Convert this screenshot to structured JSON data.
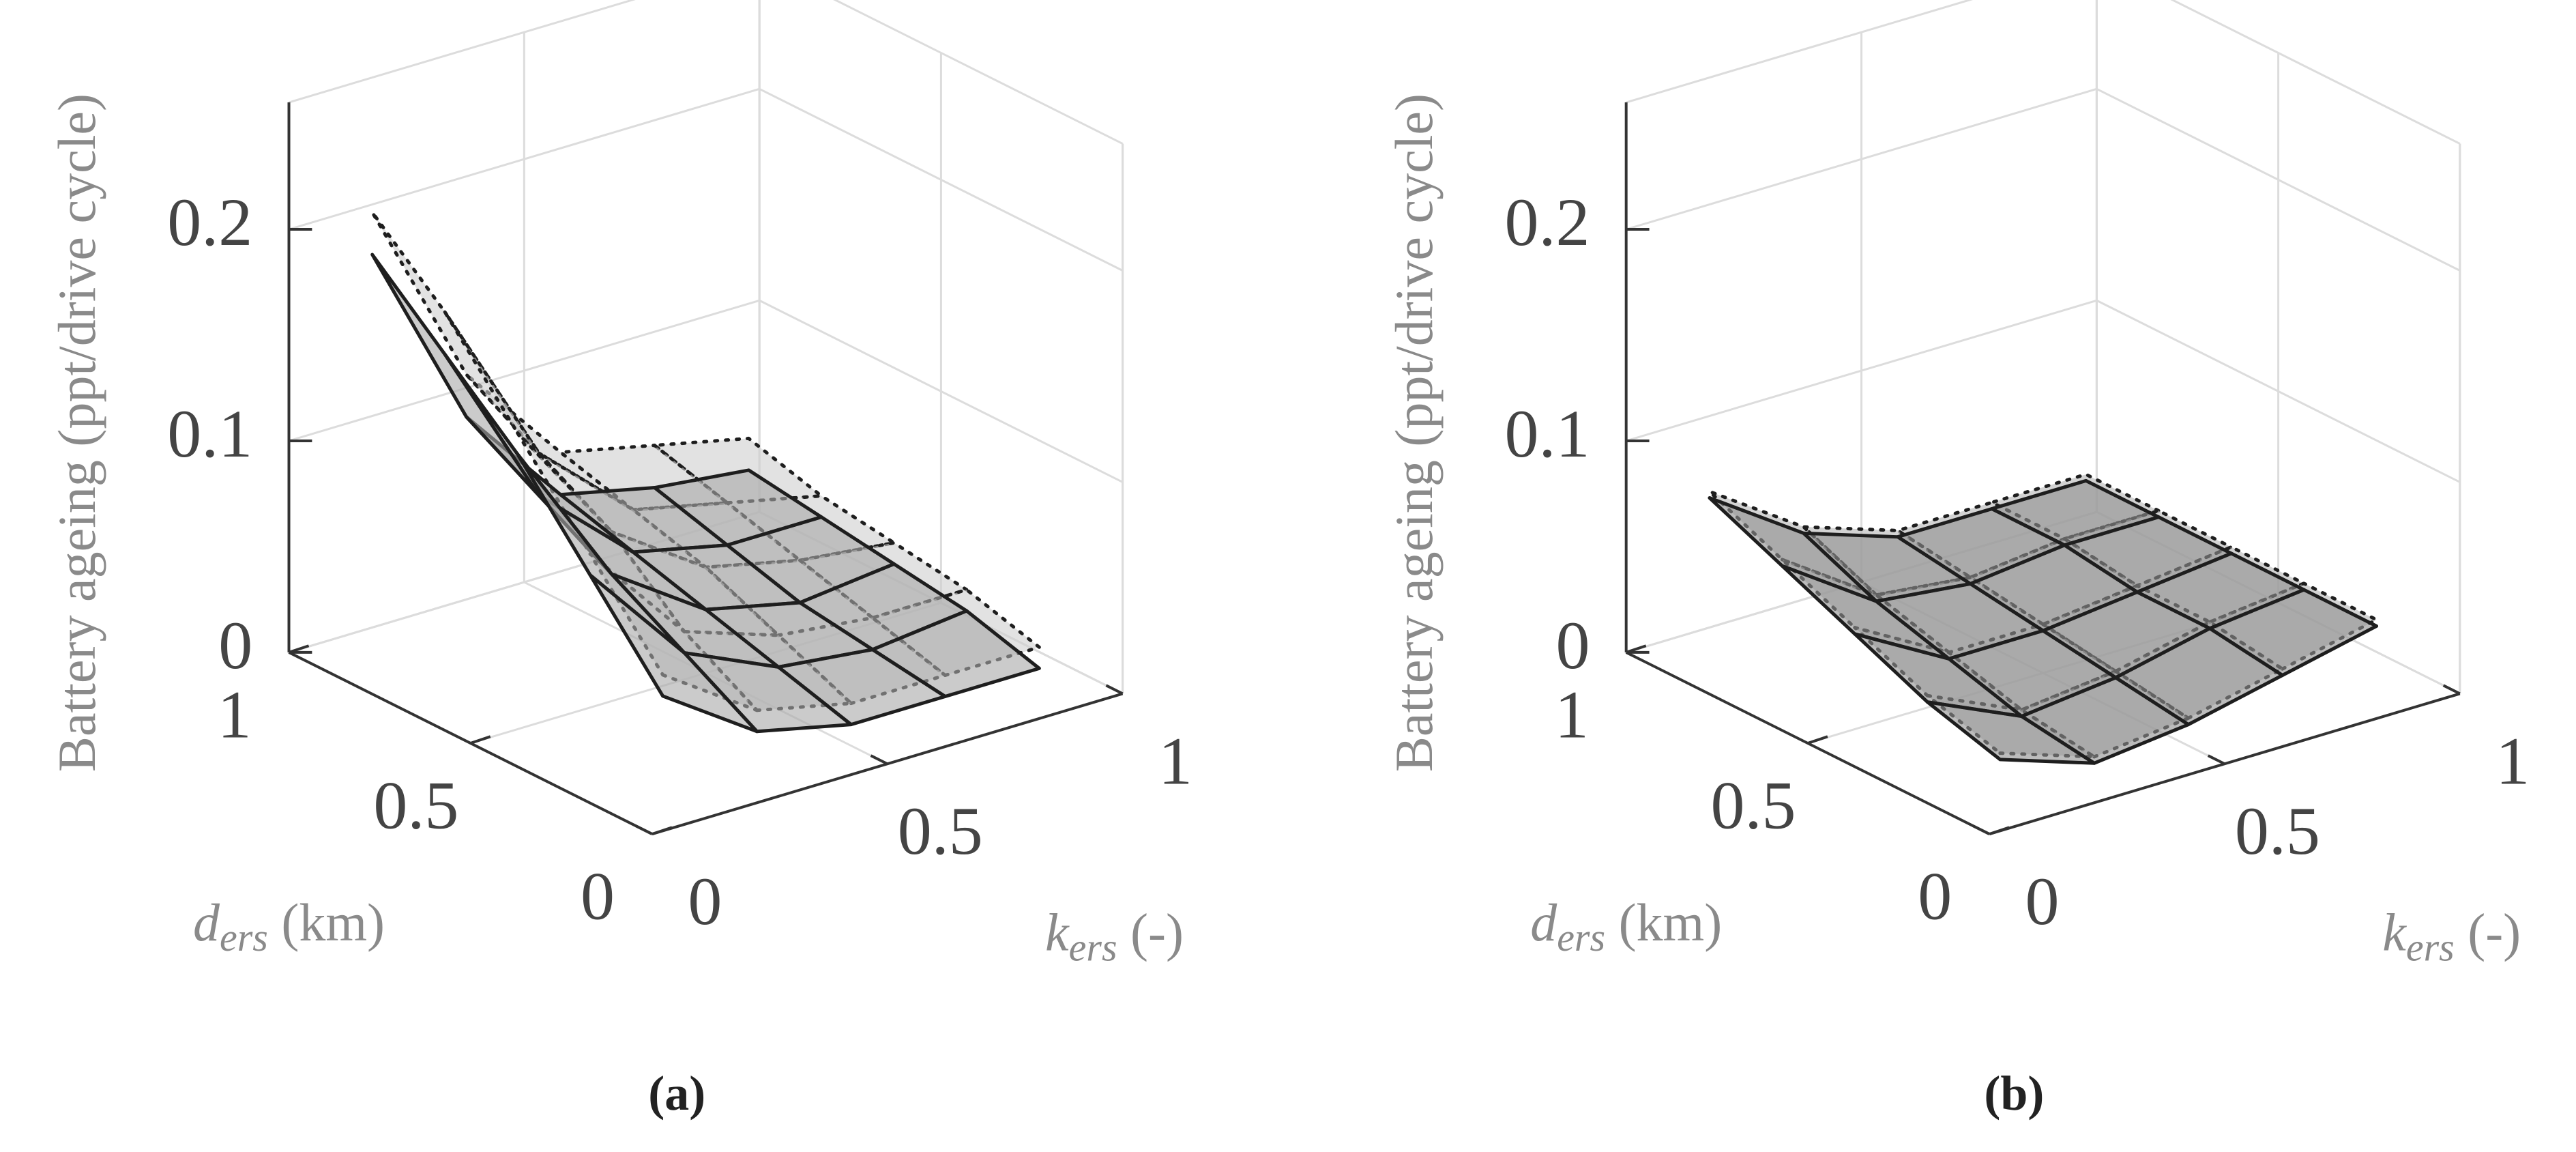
{
  "chart_data": [
    {
      "type": "surface",
      "panel_label": "(a)",
      "zlabel": "Battery ageing (ppt/drive cycle)",
      "xlabel": {
        "symbol": "k",
        "subscript": "ers",
        "unit": "(-)"
      },
      "ylabel": {
        "symbol": "d",
        "subscript": "ers",
        "unit": "(km)"
      },
      "x": [
        0.1,
        0.3,
        0.5,
        0.7,
        0.9
      ],
      "y": [
        0.1,
        0.3,
        0.5,
        0.7,
        0.9
      ],
      "series": [
        {
          "style": "dotted",
          "color": "#cfcfcf",
          "values": [
            [
              0.06,
              0.03,
              0.02,
              0.02,
              0.02
            ],
            [
              0.1,
              0.05,
              0.035,
              0.03,
              0.03
            ],
            [
              0.14,
              0.08,
              0.05,
              0.04,
              0.035
            ],
            [
              0.18,
              0.1,
              0.06,
              0.05,
              0.04
            ],
            [
              0.21,
              0.12,
              0.07,
              0.06,
              0.05
            ]
          ]
        },
        {
          "style": "solid",
          "color": "#a8a8a8",
          "values": [
            [
              0.05,
              0.02,
              0.01,
              0.01,
              0.01
            ],
            [
              0.09,
              0.04,
              0.02,
              0.015,
              0.02
            ],
            [
              0.13,
              0.06,
              0.03,
              0.02,
              0.025
            ],
            [
              0.16,
              0.08,
              0.04,
              0.03,
              0.03
            ],
            [
              0.19,
              0.1,
              0.05,
              0.04,
              0.035
            ]
          ]
        }
      ],
      "xlim": [
        0,
        1
      ],
      "ylim": [
        0,
        1
      ],
      "zlim": [
        0,
        0.26
      ],
      "xticks": [
        0,
        0.5,
        1
      ],
      "yticks": [
        0,
        0.5,
        1
      ],
      "zticks": [
        0,
        0.1,
        0.2
      ],
      "grid": true
    },
    {
      "type": "surface",
      "panel_label": "(b)",
      "zlabel": "Battery ageing (ppt/drive cycle)",
      "xlabel": {
        "symbol": "k",
        "subscript": "ers",
        "unit": "(-)"
      },
      "ylabel": {
        "symbol": "d",
        "subscript": "ers",
        "unit": "(km)"
      },
      "x": [
        0.1,
        0.3,
        0.5,
        0.7,
        0.9
      ],
      "y": [
        0.1,
        0.3,
        0.5,
        0.7,
        0.9
      ],
      "series": [
        {
          "style": "dotted",
          "color": "#b5b5b5",
          "values": [
            [
              0.023,
              0.008,
              0.013,
              0.023,
              0.033
            ],
            [
              0.033,
              0.013,
              0.018,
              0.028,
              0.033
            ],
            [
              0.048,
              0.023,
              0.023,
              0.028,
              0.033
            ],
            [
              0.063,
              0.033,
              0.028,
              0.033,
              0.033
            ],
            [
              0.078,
              0.048,
              0.033,
              0.033,
              0.033
            ]
          ]
        },
        {
          "style": "solid",
          "color": "#8f8f8f",
          "values": [
            [
              0.02,
              0.005,
              0.01,
              0.02,
              0.03
            ],
            [
              0.03,
              0.01,
              0.015,
              0.025,
              0.03
            ],
            [
              0.045,
              0.02,
              0.02,
              0.025,
              0.03
            ],
            [
              0.06,
              0.03,
              0.025,
              0.03,
              0.03
            ],
            [
              0.075,
              0.045,
              0.03,
              0.03,
              0.03
            ]
          ]
        }
      ],
      "xlim": [
        0,
        1
      ],
      "ylim": [
        0,
        1
      ],
      "zlim": [
        0,
        0.26
      ],
      "xticks": [
        0,
        0.5,
        1
      ],
      "yticks": [
        0,
        0.5,
        1
      ],
      "zticks": [
        0,
        0.1,
        0.2
      ],
      "grid": true
    }
  ]
}
